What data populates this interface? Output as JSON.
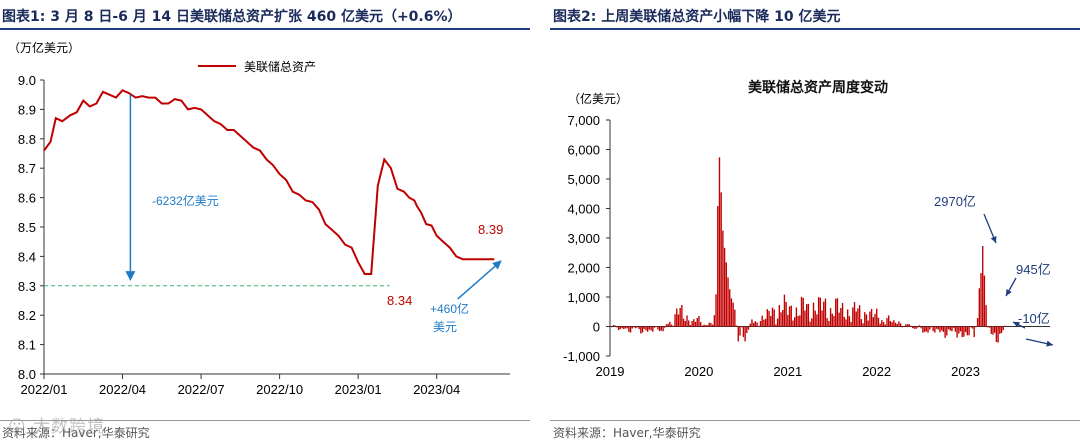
{
  "panel1": {
    "title": "图表1:  3 月 8 日-6 月 14 日美联储总资产扩张 460 亿美元（+0.6%）",
    "source": "资料来源：Haver,华泰研究",
    "watermark": "大数跨境",
    "colors": {
      "line": "#c00000",
      "annotation": "#1f7bc8",
      "reference": "#3cb371",
      "title_rule": "#1f3d7a"
    }
  },
  "panel2": {
    "title": "图表2:  上周美联储总资产小幅下降 10 亿美元",
    "source": "资料来源：Haver,华泰研究",
    "colors": {
      "bars": "#c00000",
      "annotation": "#1f3d7a"
    }
  },
  "chart_data": [
    {
      "type": "line",
      "title": "",
      "ylabel": "（万亿美元）",
      "xlabel": "",
      "ylim": [
        8.0,
        9.0
      ],
      "xlim": [
        0,
        17.8
      ],
      "yticks": [
        "8.0",
        "8.1",
        "8.2",
        "8.3",
        "8.4",
        "8.5",
        "8.6",
        "8.7",
        "8.8",
        "8.9",
        "9.0"
      ],
      "xticks": [
        {
          "pos": 0,
          "label": "2022/01"
        },
        {
          "pos": 3,
          "label": "2022/04"
        },
        {
          "pos": 6,
          "label": "2022/07"
        },
        {
          "pos": 9,
          "label": "2022/10"
        },
        {
          "pos": 12,
          "label": "2023/01"
        },
        {
          "pos": 15,
          "label": "2023/04"
        }
      ],
      "legend": "top-center",
      "series": [
        {
          "name": "美联储总资产",
          "x": [
            0,
            0.25,
            0.45,
            0.7,
            1,
            1.25,
            1.5,
            1.75,
            2,
            2.25,
            2.5,
            2.75,
            3,
            3.25,
            3.5,
            3.75,
            4,
            4.25,
            4.5,
            4.75,
            5,
            5.25,
            5.5,
            5.75,
            6,
            6.25,
            6.5,
            6.75,
            7,
            7.25,
            7.5,
            7.75,
            8,
            8.25,
            8.5,
            8.75,
            9,
            9.25,
            9.5,
            9.75,
            10,
            10.25,
            10.5,
            10.75,
            11,
            11.25,
            11.5,
            11.75,
            12,
            12.25,
            12.5,
            12.75,
            13,
            13.25,
            13.5,
            13.75,
            13.95,
            14.15,
            14.25,
            14.4,
            14.6,
            14.8,
            15,
            15.25,
            15.5,
            15.75,
            16,
            16.25,
            16.5,
            16.75,
            17,
            17.2
          ],
          "values": [
            8.76,
            8.79,
            8.87,
            8.86,
            8.88,
            8.89,
            8.93,
            8.91,
            8.92,
            8.96,
            8.95,
            8.94,
            8.965,
            8.955,
            8.94,
            8.945,
            8.94,
            8.94,
            8.92,
            8.92,
            8.935,
            8.93,
            8.9,
            8.905,
            8.9,
            8.88,
            8.86,
            8.85,
            8.83,
            8.83,
            8.81,
            8.79,
            8.77,
            8.76,
            8.73,
            8.71,
            8.68,
            8.66,
            8.62,
            8.61,
            8.59,
            8.585,
            8.56,
            8.51,
            8.49,
            8.47,
            8.44,
            8.43,
            8.38,
            8.34,
            8.34,
            8.64,
            8.73,
            8.7,
            8.63,
            8.62,
            8.6,
            8.59,
            8.57,
            8.55,
            8.51,
            8.505,
            8.47,
            8.45,
            8.43,
            8.4,
            8.39,
            8.39,
            8.39,
            8.39,
            8.39,
            8.39
          ]
        }
      ],
      "annotations": [
        {
          "text": "-6232亿美元",
          "kind": "down-arrow"
        },
        {
          "text": "8.39",
          "kind": "value-label"
        },
        {
          "text": "8.34",
          "kind": "value-label"
        },
        {
          "text": "+460亿",
          "kind": "up-arrow"
        },
        {
          "text": "美元",
          "kind": "up-arrow-line2"
        }
      ],
      "reference_line": {
        "value": 8.3,
        "style": "dashed"
      }
    },
    {
      "type": "bar",
      "title": "美联储总资产周度变动",
      "ylabel": "（亿美元）",
      "xlabel": "",
      "ylim": [
        -1000,
        7000
      ],
      "xlim": [
        2019.0,
        2023.95
      ],
      "yticks": [
        "-1,000",
        "0",
        "1,000",
        "2,000",
        "3,000",
        "4,000",
        "5,000",
        "6,000",
        "7,000"
      ],
      "xticks": [
        "2019",
        "2020",
        "2021",
        "2022",
        "2023"
      ],
      "annotations": [
        "2970亿",
        "945亿",
        "-10亿"
      ],
      "weekly_change_samples": [
        {
          "x": 2019.05,
          "y": -100
        },
        {
          "x": 2019.15,
          "y": -150
        },
        {
          "x": 2019.3,
          "y": -200
        },
        {
          "x": 2019.45,
          "y": -250
        },
        {
          "x": 2019.6,
          "y": -150
        },
        {
          "x": 2019.75,
          "y": 700
        },
        {
          "x": 2019.8,
          "y": 850
        },
        {
          "x": 2019.9,
          "y": 350
        },
        {
          "x": 2019.95,
          "y": 400
        },
        {
          "x": 2020.05,
          "y": 200
        },
        {
          "x": 2020.15,
          "y": 100
        },
        {
          "x": 2020.2,
          "y": 1250
        },
        {
          "x": 2020.22,
          "y": 5850
        },
        {
          "x": 2020.24,
          "y": 5650
        },
        {
          "x": 2020.26,
          "y": 3600
        },
        {
          "x": 2020.28,
          "y": 2900
        },
        {
          "x": 2020.3,
          "y": 2400
        },
        {
          "x": 2020.33,
          "y": 1600
        },
        {
          "x": 2020.36,
          "y": 1000
        },
        {
          "x": 2020.4,
          "y": 700
        },
        {
          "x": 2020.45,
          "y": -700
        },
        {
          "x": 2020.5,
          "y": -850
        },
        {
          "x": 2020.6,
          "y": 300
        },
        {
          "x": 2020.7,
          "y": 400
        },
        {
          "x": 2020.9,
          "y": 1100
        },
        {
          "x": 2021.1,
          "y": 1000
        },
        {
          "x": 2021.3,
          "y": 1200
        },
        {
          "x": 2021.5,
          "y": 1100
        },
        {
          "x": 2021.7,
          "y": 900
        },
        {
          "x": 2021.9,
          "y": 800
        },
        {
          "x": 2022.1,
          "y": 400
        },
        {
          "x": 2022.3,
          "y": 150
        },
        {
          "x": 2022.5,
          "y": -200
        },
        {
          "x": 2022.7,
          "y": -300
        },
        {
          "x": 2022.9,
          "y": -400
        },
        {
          "x": 2023.1,
          "y": -500
        },
        {
          "x": 2023.2,
          "y": 2970
        },
        {
          "x": 2023.22,
          "y": 945
        },
        {
          "x": 2023.3,
          "y": -600
        },
        {
          "x": 2023.4,
          "y": -500
        },
        {
          "x": 2023.45,
          "y": -10
        }
      ]
    }
  ]
}
